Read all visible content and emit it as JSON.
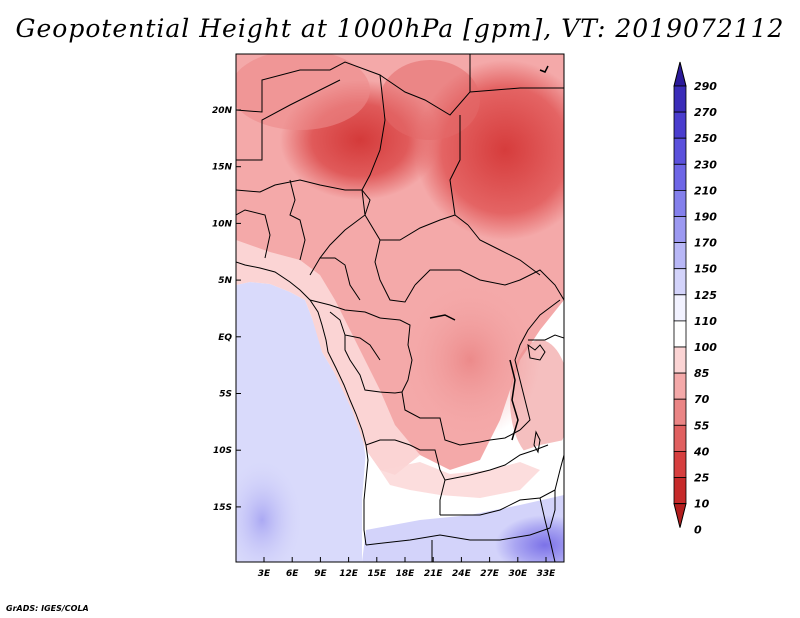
{
  "title": "Geopotential Height at 1000hPa [gpm], VT: 2019072112",
  "credit": "GrADS: IGES/COLA",
  "map": {
    "lat_labels": [
      "20N",
      "15N",
      "10N",
      "5N",
      "EQ",
      "5S",
      "10S",
      "15S"
    ],
    "lon_labels": [
      "3E",
      "6E",
      "9E",
      "12E",
      "15E",
      "18E",
      "21E",
      "24E",
      "27E",
      "30E",
      "33E"
    ],
    "colors": {
      "water": "#d9dafb",
      "land_neutral": "#ffffff",
      "border": "#000000"
    }
  },
  "colorbar": {
    "levels": [
      "290",
      "270",
      "250",
      "230",
      "210",
      "190",
      "170",
      "150",
      "125",
      "110",
      "100",
      "85",
      "70",
      "55",
      "40",
      "25",
      "10",
      "0"
    ],
    "colors": [
      "#2b1a9a",
      "#3a2cb8",
      "#4a3dce",
      "#5b51dc",
      "#6e66e6",
      "#8480ec",
      "#9c99f1",
      "#b8b7f6",
      "#d3d3fa",
      "#f2f2ff",
      "#ffffff",
      "#fbd4d4",
      "#f4a9a9",
      "#ea8585",
      "#e06060",
      "#d63f3f",
      "#c62a2a",
      "#b31e1e"
    ]
  }
}
